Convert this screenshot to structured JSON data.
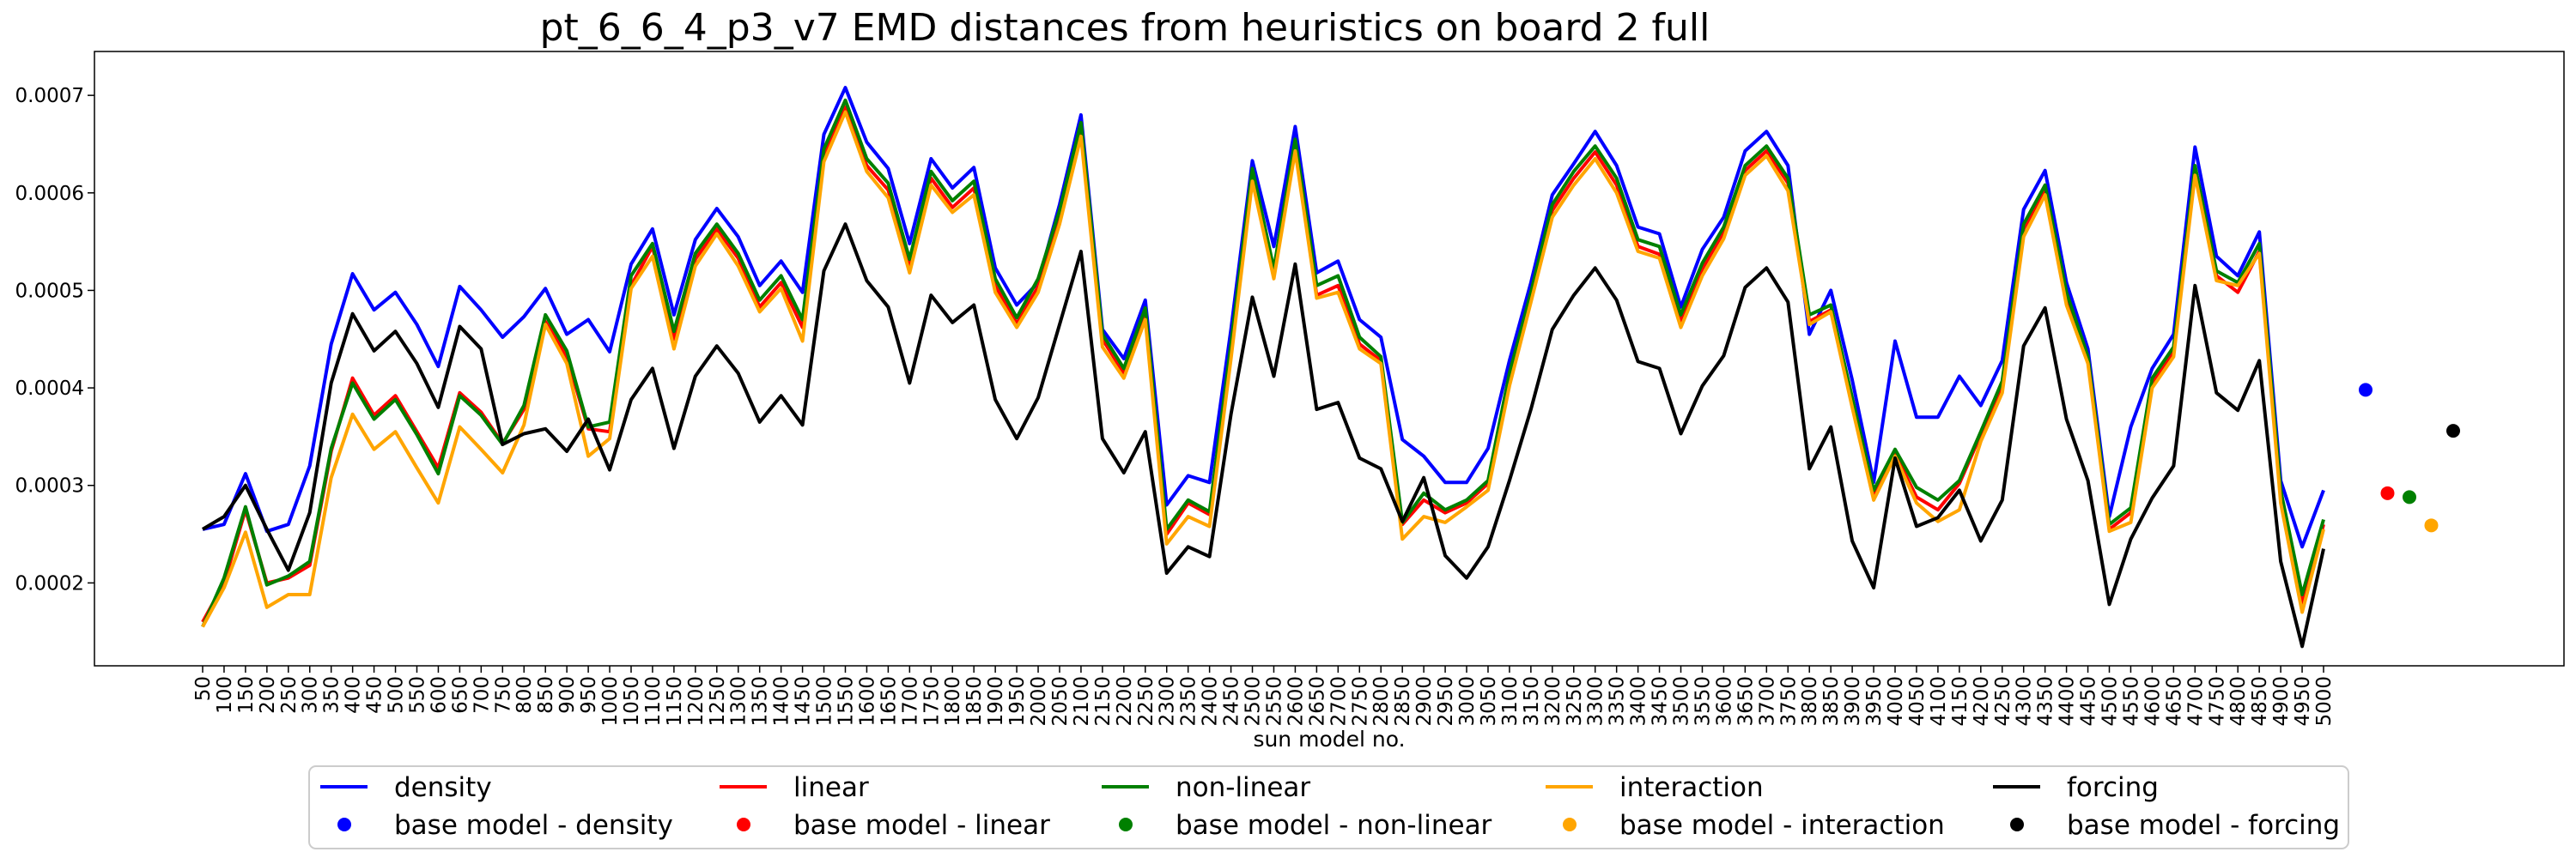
{
  "chart_data": {
    "type": "line",
    "title": "pt_6_6_4_p3_v7 EMD distances from heuristics on board 2 full",
    "xlabel": "sun model no.",
    "ylabel": "",
    "ylim": [
      0.000115,
      0.000745
    ],
    "yticks": [
      0.0002,
      0.0003,
      0.0004,
      0.0005,
      0.0006,
      0.0007
    ],
    "ytick_labels": [
      "0.0002",
      "0.0003",
      "0.0004",
      "0.0005",
      "0.0006",
      "0.0007"
    ],
    "categories": [
      "50",
      "100",
      "150",
      "200",
      "250",
      "300",
      "350",
      "400",
      "450",
      "500",
      "550",
      "600",
      "650",
      "700",
      "750",
      "800",
      "850",
      "900",
      "950",
      "1000",
      "1050",
      "1100",
      "1150",
      "1200",
      "1250",
      "1300",
      "1350",
      "1400",
      "1450",
      "1500",
      "1550",
      "1600",
      "1650",
      "1700",
      "1750",
      "1800",
      "1850",
      "1900",
      "1950",
      "2000",
      "2050",
      "2100",
      "2150",
      "2200",
      "2250",
      "2300",
      "2350",
      "2400",
      "2450",
      "2500",
      "2550",
      "2600",
      "2650",
      "2700",
      "2750",
      "2800",
      "2850",
      "2900",
      "2950",
      "3000",
      "3050",
      "3100",
      "3150",
      "3200",
      "3250",
      "3300",
      "3350",
      "3400",
      "3450",
      "3500",
      "3550",
      "3600",
      "3650",
      "3700",
      "3750",
      "3800",
      "3850",
      "3900",
      "3950",
      "4000",
      "4050",
      "4100",
      "4150",
      "4200",
      "4250",
      "4300",
      "4350",
      "4400",
      "4450",
      "4500",
      "4550",
      "4600",
      "4650",
      "4700",
      "4750",
      "4800",
      "4850",
      "4900",
      "4950",
      "5000"
    ],
    "series": [
      {
        "name": "density",
        "color": "#0000ff",
        "values": [
          0.000255,
          0.00026,
          0.000312,
          0.000253,
          0.00026,
          0.00032,
          0.000445,
          0.000517,
          0.00048,
          0.000498,
          0.000465,
          0.000422,
          0.000504,
          0.00048,
          0.000452,
          0.000473,
          0.000502,
          0.000455,
          0.00047,
          0.000437,
          0.000527,
          0.000563,
          0.000475,
          0.000552,
          0.000584,
          0.000555,
          0.000505,
          0.00053,
          0.000498,
          0.00066,
          0.000708,
          0.000652,
          0.000625,
          0.000548,
          0.000635,
          0.000605,
          0.000626,
          0.000523,
          0.000485,
          0.000508,
          0.000588,
          0.00068,
          0.00046,
          0.00043,
          0.00049,
          0.00028,
          0.00031,
          0.000303,
          0.00046,
          0.000633,
          0.000545,
          0.000668,
          0.000518,
          0.00053,
          0.00047,
          0.000452,
          0.000347,
          0.00033,
          0.000303,
          0.000303,
          0.000338,
          0.000428,
          0.000508,
          0.000598,
          0.00063,
          0.000663,
          0.000628,
          0.000565,
          0.000558,
          0.000483,
          0.000542,
          0.000575,
          0.000643,
          0.000663,
          0.000628,
          0.000455,
          0.0005,
          0.000408,
          0.000303,
          0.000448,
          0.00037,
          0.00037,
          0.000412,
          0.000382,
          0.000428,
          0.000583,
          0.000623,
          0.000508,
          0.00044,
          0.000268,
          0.00036,
          0.00042,
          0.000455,
          0.000647,
          0.000535,
          0.000515,
          0.00056,
          0.000305,
          0.000237,
          0.000295
        ]
      },
      {
        "name": "linear",
        "color": "#ff0000",
        "values": [
          0.00016,
          0.0002,
          0.000275,
          0.0002,
          0.000205,
          0.000218,
          0.000335,
          0.00041,
          0.000372,
          0.000392,
          0.000355,
          0.000318,
          0.000395,
          0.000375,
          0.000343,
          0.000378,
          0.000468,
          0.000432,
          0.000358,
          0.000355,
          0.000505,
          0.000545,
          0.00045,
          0.000532,
          0.000563,
          0.000533,
          0.000483,
          0.000508,
          0.000462,
          0.000637,
          0.000688,
          0.000628,
          0.000603,
          0.000525,
          0.000615,
          0.000585,
          0.000605,
          0.000505,
          0.000466,
          0.000504,
          0.000575,
          0.000665,
          0.00045,
          0.000415,
          0.000477,
          0.00025,
          0.000282,
          0.00027,
          0.00044,
          0.000618,
          0.000517,
          0.000648,
          0.000495,
          0.000505,
          0.000445,
          0.000428,
          0.00026,
          0.000285,
          0.000272,
          0.000282,
          0.000302,
          0.00041,
          0.000492,
          0.000582,
          0.000615,
          0.000642,
          0.000608,
          0.000545,
          0.000537,
          0.000468,
          0.000522,
          0.00056,
          0.000623,
          0.000643,
          0.00061,
          0.000468,
          0.00048,
          0.000383,
          0.000288,
          0.000333,
          0.000288,
          0.000275,
          0.000302,
          0.000352,
          0.000402,
          0.000563,
          0.000603,
          0.000492,
          0.000428,
          0.000255,
          0.000272,
          0.000405,
          0.000437,
          0.000623,
          0.000515,
          0.000498,
          0.00054,
          0.00029,
          0.000178,
          0.00026
        ]
      },
      {
        "name": "non-linear",
        "color": "#008000",
        "values": [
          0.000155,
          0.000205,
          0.000278,
          0.000198,
          0.000207,
          0.000222,
          0.000338,
          0.000405,
          0.000368,
          0.000388,
          0.000352,
          0.000312,
          0.000392,
          0.000372,
          0.000342,
          0.000382,
          0.000475,
          0.000438,
          0.00036,
          0.000365,
          0.000515,
          0.000548,
          0.000458,
          0.000538,
          0.000568,
          0.000538,
          0.00049,
          0.000515,
          0.00047,
          0.000645,
          0.000695,
          0.000635,
          0.00061,
          0.000532,
          0.000622,
          0.000592,
          0.000612,
          0.000512,
          0.000472,
          0.000512,
          0.000582,
          0.000672,
          0.000455,
          0.00042,
          0.000482,
          0.000255,
          0.000285,
          0.000273,
          0.000445,
          0.000625,
          0.000522,
          0.000655,
          0.000505,
          0.000515,
          0.000452,
          0.000432,
          0.000262,
          0.000292,
          0.000275,
          0.000285,
          0.000305,
          0.000415,
          0.000498,
          0.000588,
          0.000622,
          0.000648,
          0.000615,
          0.000552,
          0.000545,
          0.000475,
          0.000528,
          0.000565,
          0.000628,
          0.000648,
          0.000615,
          0.000475,
          0.000485,
          0.00039,
          0.000295,
          0.000337,
          0.000298,
          0.000285,
          0.000305,
          0.000355,
          0.000407,
          0.000568,
          0.000608,
          0.000498,
          0.000432,
          0.00026,
          0.000277,
          0.00041,
          0.000442,
          0.000628,
          0.00052,
          0.000508,
          0.000548,
          0.000295,
          0.000188,
          0.000265
        ]
      },
      {
        "name": "interaction",
        "color": "#ffa500",
        "values": [
          0.000155,
          0.000195,
          0.000252,
          0.000175,
          0.000188,
          0.000188,
          0.000308,
          0.000373,
          0.000337,
          0.000355,
          0.000318,
          0.000282,
          0.00036,
          0.000337,
          0.000313,
          0.000362,
          0.000465,
          0.000425,
          0.00033,
          0.000348,
          0.000502,
          0.000535,
          0.00044,
          0.000525,
          0.000558,
          0.000525,
          0.000478,
          0.000502,
          0.000448,
          0.000632,
          0.000683,
          0.000622,
          0.000595,
          0.000518,
          0.000608,
          0.00058,
          0.000598,
          0.000498,
          0.000462,
          0.000498,
          0.000568,
          0.000658,
          0.000442,
          0.00041,
          0.00047,
          0.00024,
          0.000268,
          0.000258,
          0.00043,
          0.000612,
          0.000512,
          0.000643,
          0.000492,
          0.000498,
          0.00044,
          0.000425,
          0.000245,
          0.000268,
          0.000262,
          0.000278,
          0.000295,
          0.000402,
          0.000488,
          0.000575,
          0.000608,
          0.000635,
          0.0006,
          0.00054,
          0.000533,
          0.000462,
          0.000515,
          0.000553,
          0.000618,
          0.000638,
          0.000602,
          0.000465,
          0.000478,
          0.00038,
          0.000285,
          0.00033,
          0.000282,
          0.000263,
          0.000275,
          0.000345,
          0.000395,
          0.000555,
          0.000598,
          0.000485,
          0.000425,
          0.000253,
          0.000262,
          0.0004,
          0.000432,
          0.000618,
          0.00051,
          0.000505,
          0.000538,
          0.000282,
          0.00017,
          0.000255
        ]
      },
      {
        "name": "forcing",
        "color": "#000000",
        "values": [
          0.000255,
          0.000268,
          0.0003,
          0.000255,
          0.000213,
          0.000272,
          0.000405,
          0.000476,
          0.000438,
          0.000458,
          0.000425,
          0.00038,
          0.000463,
          0.00044,
          0.000342,
          0.000353,
          0.000358,
          0.000335,
          0.000368,
          0.000316,
          0.000388,
          0.00042,
          0.000338,
          0.000412,
          0.000443,
          0.000415,
          0.000365,
          0.000392,
          0.000362,
          0.00052,
          0.000568,
          0.00051,
          0.000483,
          0.000405,
          0.000495,
          0.000467,
          0.000485,
          0.000388,
          0.000348,
          0.00039,
          0.000465,
          0.00054,
          0.000348,
          0.000313,
          0.000355,
          0.00021,
          0.000237,
          0.000227,
          0.000373,
          0.000493,
          0.000412,
          0.000527,
          0.000378,
          0.000385,
          0.000328,
          0.000317,
          0.000263,
          0.000308,
          0.000228,
          0.000205,
          0.000237,
          0.000305,
          0.000378,
          0.00046,
          0.000495,
          0.000523,
          0.00049,
          0.000427,
          0.00042,
          0.000353,
          0.000402,
          0.000433,
          0.000503,
          0.000523,
          0.000488,
          0.000317,
          0.00036,
          0.000243,
          0.000195,
          0.000328,
          0.000258,
          0.000267,
          0.000295,
          0.000243,
          0.000285,
          0.000443,
          0.000482,
          0.000368,
          0.000305,
          0.000178,
          0.000245,
          0.000287,
          0.00032,
          0.000505,
          0.000395,
          0.000377,
          0.000428,
          0.000222,
          0.000135,
          0.000235
        ]
      }
    ],
    "base_points": [
      {
        "name": "base model - density",
        "color": "#0000ff",
        "value": 0.000398
      },
      {
        "name": "base model - linear",
        "color": "#ff0000",
        "value": 0.000292
      },
      {
        "name": "base model - non-linear",
        "color": "#008000",
        "value": 0.000288
      },
      {
        "name": "base model - interaction",
        "color": "#ffa500",
        "value": 0.000259
      },
      {
        "name": "base model - forcing",
        "color": "#000000",
        "value": 0.000356
      }
    ],
    "grid": false,
    "legend_placement": "bottom-center"
  }
}
